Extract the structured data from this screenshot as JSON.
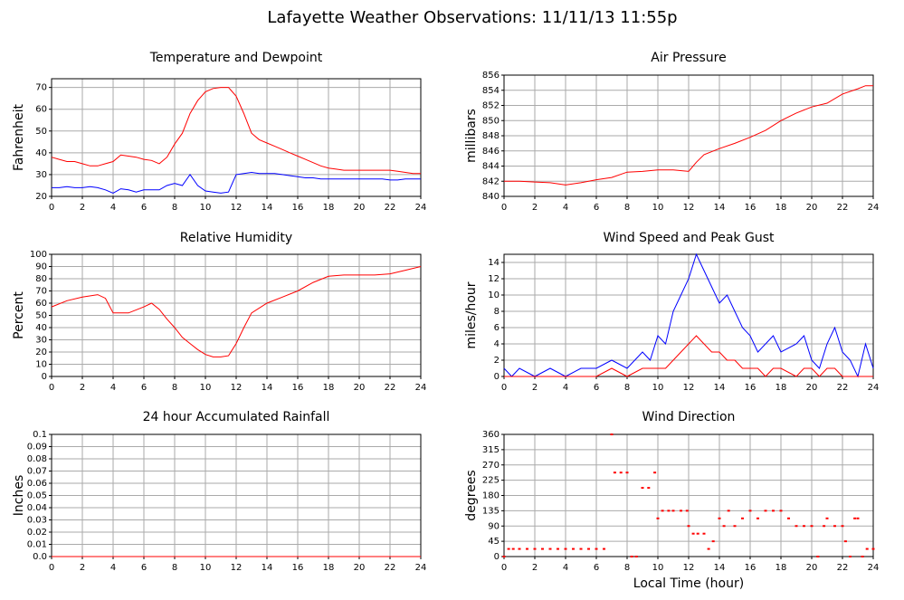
{
  "title": "Lafayette Weather Observations: 11/11/13 11:55p",
  "chart_data": [
    {
      "type": "line",
      "title": "Temperature and Dewpoint",
      "y_label": "Fahrenheit",
      "x": [
        0,
        0.5,
        1,
        1.5,
        2,
        2.5,
        3,
        3.5,
        4,
        4.5,
        5,
        5.5,
        6,
        6.5,
        7,
        7.5,
        8,
        8.5,
        9,
        9.5,
        10,
        10.5,
        11,
        11.5,
        12,
        12.5,
        13,
        13.5,
        14,
        14.5,
        15,
        15.5,
        16,
        16.5,
        17,
        17.5,
        18,
        18.5,
        19,
        19.5,
        20,
        20.5,
        21,
        21.5,
        22,
        22.5,
        23,
        23.5,
        24
      ],
      "series": [
        {
          "color": "#ff0000",
          "values": [
            38,
            37,
            36,
            36,
            35,
            34,
            34,
            35,
            36,
            39,
            38.5,
            38,
            37,
            36.5,
            35,
            38,
            44,
            49,
            58,
            64,
            68,
            69.5,
            70,
            70,
            66,
            58,
            49,
            46,
            44.5,
            43,
            41.5,
            40,
            38.5,
            37,
            35.5,
            34,
            33,
            32.5,
            32,
            32,
            32,
            32,
            32,
            32,
            32,
            31.5,
            31,
            30.5,
            30.5
          ]
        },
        {
          "color": "#0000ff",
          "values": [
            24,
            24,
            24.5,
            24,
            24,
            24.5,
            24,
            23,
            21.5,
            23.5,
            23,
            22,
            23,
            23,
            23,
            25,
            26,
            25,
            30,
            25,
            22.5,
            22,
            21.5,
            22,
            30,
            30.5,
            31,
            30.5,
            30.5,
            30.5,
            30,
            29.5,
            29,
            28.5,
            28.5,
            28,
            28,
            28,
            28,
            28,
            28,
            28,
            28,
            28,
            27.5,
            27.5,
            28,
            28,
            28
          ]
        }
      ],
      "xlim": [
        0,
        24
      ],
      "xticks": [
        0,
        2,
        4,
        6,
        8,
        10,
        12,
        14,
        16,
        18,
        20,
        22,
        24
      ],
      "ylim": [
        20,
        74
      ],
      "yticks": [
        20,
        30,
        40,
        50,
        60,
        70
      ],
      "grid": true
    },
    {
      "type": "line",
      "title": "Air Pressure",
      "y_label": "millibars",
      "x": [
        0,
        1,
        2,
        3,
        4,
        5,
        6,
        7,
        8,
        9,
        10,
        11,
        12,
        12.5,
        13,
        14,
        15,
        16,
        17,
        18,
        19,
        20,
        21,
        22,
        23,
        23.5,
        24
      ],
      "series": [
        {
          "color": "#ff0000",
          "values": [
            842,
            842,
            841.9,
            841.8,
            841.5,
            841.8,
            842.2,
            842.5,
            843.2,
            843.3,
            843.5,
            843.5,
            843.3,
            844.5,
            845.5,
            846.3,
            847,
            847.8,
            848.7,
            850,
            851,
            851.8,
            852.3,
            853.5,
            854.2,
            854.6,
            854.6
          ]
        }
      ],
      "xlim": [
        0,
        24
      ],
      "xticks": [
        0,
        2,
        4,
        6,
        8,
        10,
        12,
        14,
        16,
        18,
        20,
        22,
        24
      ],
      "ylim": [
        840,
        856
      ],
      "yticks": [
        840,
        842,
        844,
        846,
        848,
        850,
        852,
        854,
        856
      ],
      "grid": true
    },
    {
      "type": "line",
      "title": "Relative Humidity",
      "y_label": "Percent",
      "x": [
        0,
        1,
        2,
        3,
        3.5,
        4,
        5,
        6,
        6.5,
        7,
        7.5,
        8,
        8.5,
        9,
        9.5,
        10,
        10.5,
        11,
        11.5,
        12,
        12.5,
        13,
        14,
        15,
        16,
        17,
        18,
        19,
        20,
        21,
        22,
        23,
        24
      ],
      "series": [
        {
          "color": "#ff0000",
          "values": [
            57,
            62,
            65,
            67,
            64,
            52,
            52,
            57,
            60,
            55,
            47,
            40,
            32,
            27,
            22,
            18,
            16,
            16,
            17,
            27,
            40,
            52,
            60,
            65,
            70,
            77,
            82,
            83,
            83,
            83,
            84,
            87,
            90
          ]
        }
      ],
      "xlim": [
        0,
        24
      ],
      "xticks": [
        0,
        2,
        4,
        6,
        8,
        10,
        12,
        14,
        16,
        18,
        20,
        22,
        24
      ],
      "ylim": [
        0,
        100
      ],
      "yticks": [
        0,
        10,
        20,
        30,
        40,
        50,
        60,
        70,
        80,
        90,
        100
      ],
      "grid": true
    },
    {
      "type": "line",
      "title": "Wind Speed and Peak Gust",
      "y_label": "miles/hour",
      "x": [
        0,
        0.5,
        1,
        2,
        3,
        4,
        5,
        6,
        7,
        8,
        9,
        9.5,
        10,
        10.5,
        11,
        11.5,
        12,
        12.5,
        13,
        13.5,
        14,
        14.5,
        15,
        15.5,
        16,
        16.5,
        17,
        17.5,
        18,
        19,
        19.5,
        20,
        20.5,
        21,
        21.5,
        22,
        22.5,
        23,
        23.5,
        24
      ],
      "series": [
        {
          "color": "#0000ff",
          "values": [
            1,
            0,
            1,
            0,
            1,
            0,
            1,
            1,
            2,
            1,
            3,
            2,
            5,
            4,
            8,
            10,
            12,
            15,
            13,
            11,
            9,
            10,
            8,
            6,
            5,
            3,
            4,
            5,
            3,
            4,
            5,
            2,
            1,
            4,
            6,
            3,
            2,
            0,
            4,
            1
          ]
        },
        {
          "color": "#ff0000",
          "values": [
            0,
            0,
            0,
            0,
            0,
            0,
            0,
            0,
            1,
            0,
            1,
            1,
            1,
            1,
            2,
            3,
            4,
            5,
            4,
            3,
            3,
            2,
            2,
            1,
            1,
            1,
            0,
            1,
            1,
            0,
            1,
            1,
            0,
            1,
            1,
            0,
            0,
            0,
            0,
            0
          ]
        }
      ],
      "xlim": [
        0,
        24
      ],
      "xticks": [
        0,
        2,
        4,
        6,
        8,
        10,
        12,
        14,
        16,
        18,
        20,
        22,
        24
      ],
      "ylim": [
        0,
        15
      ],
      "yticks": [
        0,
        2,
        4,
        6,
        8,
        10,
        12,
        14
      ],
      "grid": true
    },
    {
      "type": "line",
      "title": "24 hour Accumulated Rainfall",
      "y_label": "Inches",
      "x": [
        0,
        24
      ],
      "series": [
        {
          "color": "#ff0000",
          "values": [
            0,
            0
          ]
        }
      ],
      "xlim": [
        0,
        24
      ],
      "xticks": [
        0,
        2,
        4,
        6,
        8,
        10,
        12,
        14,
        16,
        18,
        20,
        22,
        24
      ],
      "ylim": [
        0,
        0.1
      ],
      "yticks": [
        {
          "value": 0,
          "label": "0.0"
        },
        0.01,
        0.02,
        0.03,
        0.04,
        0.05,
        0.06,
        0.07,
        0.08,
        0.09,
        0.1
      ],
      "grid": true
    },
    {
      "type": "scatter",
      "title": "Wind Direction",
      "y_label": "degrees",
      "x_label": "Local Time (hour)",
      "x": [
        0,
        0.3,
        0.6,
        1,
        1.5,
        2,
        2.5,
        3,
        3.5,
        4,
        4.5,
        5,
        5.5,
        6,
        6.5,
        7,
        7.2,
        7.6,
        8,
        8.3,
        8.6,
        9,
        9.4,
        9.8,
        10,
        10.3,
        10.7,
        11,
        11.5,
        11.9,
        12,
        12.3,
        12.6,
        13,
        13.3,
        13.6,
        14,
        14.3,
        14.6,
        15,
        15.5,
        16,
        16.5,
        17,
        17.5,
        18,
        18.5,
        19,
        19.5,
        20,
        20.4,
        20.8,
        21,
        21.5,
        22,
        22.2,
        22.5,
        22.8,
        23,
        23.3,
        23.6,
        24
      ],
      "series": [
        {
          "color": "#ff0000",
          "values": [
            0,
            22.5,
            22.5,
            22.5,
            22.5,
            22.5,
            22.5,
            22.5,
            22.5,
            22.5,
            22.5,
            22.5,
            22.5,
            22.5,
            22.5,
            360,
            247.5,
            247.5,
            247.5,
            0,
            0,
            202.5,
            202.5,
            247.5,
            112.5,
            135,
            135,
            135,
            135,
            135,
            90,
            67.5,
            67.5,
            67.5,
            22.5,
            45,
            112.5,
            90,
            135,
            90,
            112.5,
            135,
            112.5,
            135,
            135,
            135,
            112.5,
            90,
            90,
            90,
            0,
            90,
            112.5,
            90,
            90,
            45,
            0,
            112.5,
            112.5,
            0,
            22.5,
            22.5
          ]
        }
      ],
      "xlim": [
        0,
        24
      ],
      "xticks": [
        0,
        2,
        4,
        6,
        8,
        10,
        12,
        14,
        16,
        18,
        20,
        22,
        24
      ],
      "ylim": [
        0,
        360
      ],
      "yticks": [
        0,
        45,
        90,
        135,
        180,
        225,
        270,
        315,
        360
      ],
      "grid": true
    }
  ]
}
